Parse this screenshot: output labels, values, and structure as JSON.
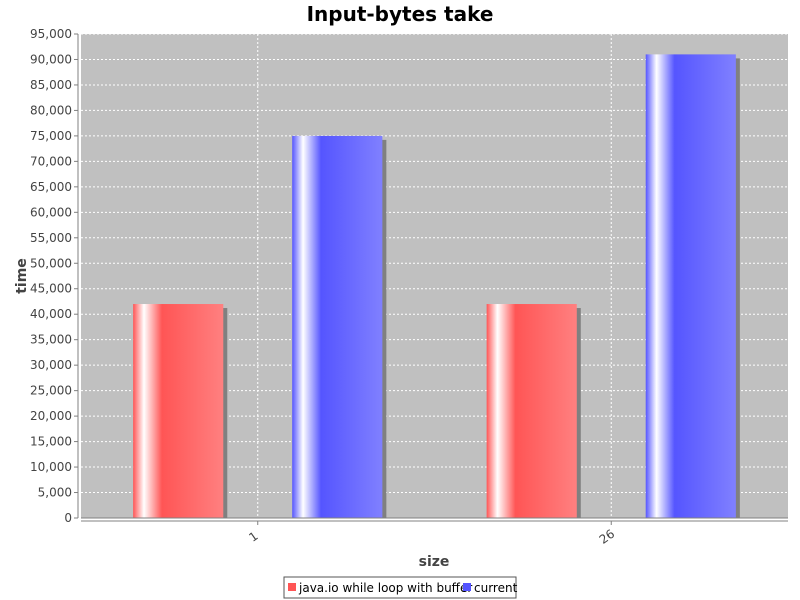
{
  "chart_data": {
    "type": "bar",
    "title": "Input-bytes take",
    "xlabel": "size",
    "ylabel": "time",
    "categories": [
      "1",
      "26"
    ],
    "series": [
      {
        "name": "java.io while loop with buffer",
        "values": [
          42000,
          42000
        ],
        "color": "#ff5555"
      },
      {
        "name": "current",
        "values": [
          75000,
          91000
        ],
        "color": "#5555ff"
      }
    ],
    "ylim": [
      0,
      95000
    ],
    "ytick_step": 5000,
    "grid": true,
    "plot_background": "#c0c0c0",
    "legend_position": "bottom-center"
  }
}
